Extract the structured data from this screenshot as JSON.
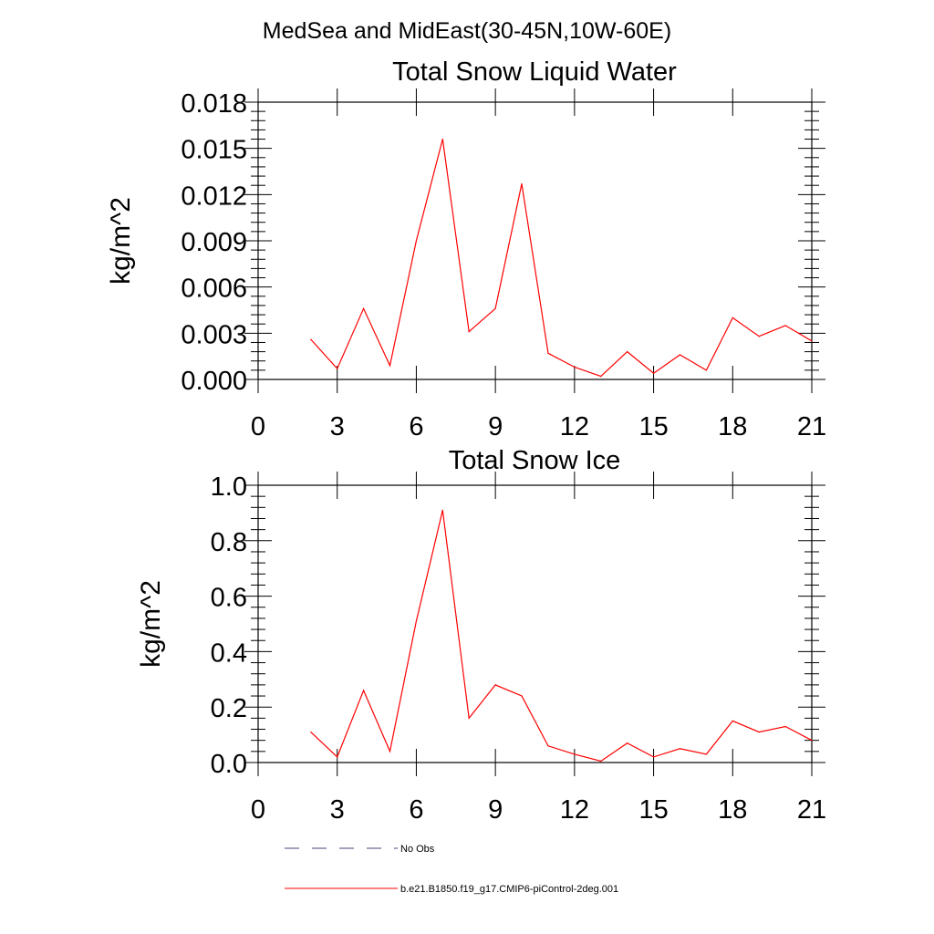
{
  "figure": {
    "title": "MedSea and MidEast(30-45N,10W-60E)"
  },
  "legend": {
    "entries": [
      {
        "label": "No Obs",
        "style": "dashed",
        "color": "#44447a"
      },
      {
        "label": "b.e21.B1850.f19_g17.CMIP6-piControl-2deg.001",
        "style": "solid",
        "color": "#ff0000"
      }
    ]
  },
  "chart_data": [
    {
      "type": "line",
      "title": "Total Snow Liquid Water",
      "xlabel": "",
      "ylabel": "kg/m^2",
      "xlim": [
        0,
        21
      ],
      "ylim": [
        0,
        0.018
      ],
      "xticks": [
        0,
        3,
        6,
        9,
        12,
        15,
        18,
        21
      ],
      "xtick_labels": [
        "0",
        "3",
        "6",
        "9",
        "12",
        "15",
        "18",
        "21"
      ],
      "yticks": [
        0,
        0.003,
        0.006,
        0.009,
        0.012,
        0.015,
        0.018
      ],
      "ytick_labels": [
        "0.000",
        "0.003",
        "0.006",
        "0.009",
        "0.012",
        "0.015",
        "0.018"
      ],
      "grid": false,
      "series": [
        {
          "name": "b.e21.B1850.f19_g17.CMIP6-piControl-2deg.001",
          "color": "#ff0000",
          "x": [
            2,
            3,
            4,
            5,
            6,
            7,
            8,
            9,
            10,
            11,
            12,
            13,
            14,
            15,
            16,
            17,
            18,
            19,
            20,
            21
          ],
          "values": [
            0.0026,
            0.0007,
            0.0046,
            0.0009,
            0.009,
            0.0156,
            0.0031,
            0.0046,
            0.0127,
            0.0017,
            0.0008,
            0.0002,
            0.0018,
            0.0004,
            0.0016,
            0.0006,
            0.004,
            0.0028,
            0.0035,
            0.0025
          ]
        }
      ]
    },
    {
      "type": "line",
      "title": "Total Snow Ice",
      "xlabel": "",
      "ylabel": "kg/m^2",
      "xlim": [
        0,
        21
      ],
      "ylim": [
        0,
        1.0
      ],
      "xticks": [
        0,
        3,
        6,
        9,
        12,
        15,
        18,
        21
      ],
      "xtick_labels": [
        "0",
        "3",
        "6",
        "9",
        "12",
        "15",
        "18",
        "21"
      ],
      "yticks": [
        0,
        0.2,
        0.4,
        0.6,
        0.8,
        1.0
      ],
      "ytick_labels": [
        "0.0",
        "0.2",
        "0.4",
        "0.6",
        "0.8",
        "1.0"
      ],
      "grid": false,
      "series": [
        {
          "name": "b.e21.B1850.f19_g17.CMIP6-piControl-2deg.001",
          "color": "#ff0000",
          "x": [
            2,
            3,
            4,
            5,
            6,
            7,
            8,
            9,
            10,
            11,
            12,
            13,
            14,
            15,
            16,
            17,
            18,
            19,
            20,
            21
          ],
          "values": [
            0.11,
            0.02,
            0.26,
            0.04,
            0.51,
            0.91,
            0.16,
            0.28,
            0.24,
            0.06,
            0.03,
            0.005,
            0.07,
            0.02,
            0.05,
            0.03,
            0.15,
            0.11,
            0.13,
            0.08
          ]
        }
      ]
    }
  ]
}
